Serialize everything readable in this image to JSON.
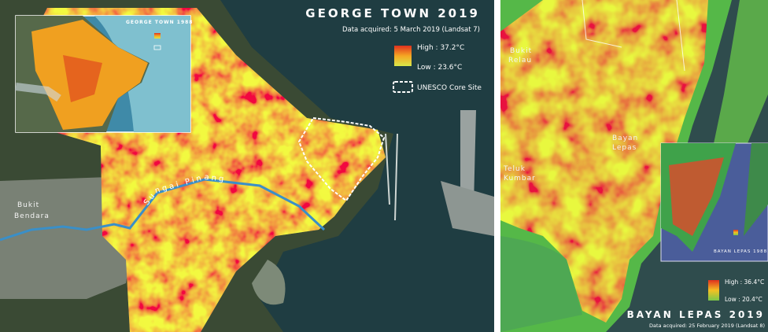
{
  "left_map": {
    "title": "GEORGE TOWN 2019",
    "subtitle": "Data acquired: 5 March 2019 (Landsat 7)",
    "legend": {
      "high": "High : 37.2°C",
      "low": "Low : 23.6°C",
      "boundary": "UNESCO Core Site"
    },
    "places": [
      [
        "Bukit",
        "Bendara"
      ]
    ],
    "river": "Sungai Pinang",
    "inset": {
      "title": "GEORGE TOWN 1988"
    }
  },
  "right_map": {
    "title": "BAYAN LEPAS 2019",
    "subtitle": "Data acquired: 25 February 2019 (Landsat 8)",
    "legend": {
      "high": "High : 36.4°C",
      "low": "Low : 20.4°C"
    },
    "places": [
      [
        "Bukit",
        "Relau"
      ],
      [
        "Bayan",
        "Lepas"
      ],
      [
        "Teluk",
        "Kumbar"
      ]
    ],
    "inset": {
      "title": "BAYAN LEPAS 1988"
    }
  }
}
